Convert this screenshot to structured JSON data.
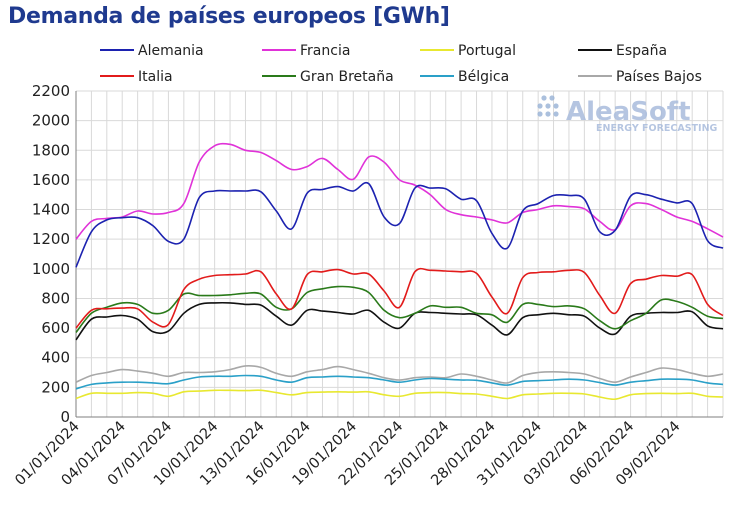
{
  "chart_data": {
    "type": "line",
    "title": "Demanda de países europeos [GWh]",
    "xlabel": "",
    "ylabel": "",
    "ylim": [
      0,
      2200
    ],
    "yticks": [
      0,
      200,
      400,
      600,
      800,
      1000,
      1200,
      1400,
      1600,
      1800,
      2000,
      2200
    ],
    "x_range": [
      "01/01/2024",
      "11/02/2024"
    ],
    "xtick_labels": [
      "01/01/2024",
      "04/01/2024",
      "07/01/2024",
      "10/01/2024",
      "13/01/2024",
      "16/01/2024",
      "19/01/2024",
      "22/01/2024",
      "25/01/2024",
      "28/01/2024",
      "31/01/2024",
      "03/02/2024",
      "06/02/2024",
      "09/02/2024"
    ],
    "grid": true,
    "legend_position": "top",
    "watermark": {
      "name": "AleaSoft",
      "tagline": "ENERGY FORECASTING"
    },
    "series": [
      {
        "name": "Alemania",
        "color": "#1c22b0",
        "values": [
          1010,
          1250,
          1330,
          1345,
          1345,
          1290,
          1185,
          1200,
          1480,
          1525,
          1525,
          1525,
          1520,
          1390,
          1270,
          1510,
          1535,
          1555,
          1525,
          1575,
          1350,
          1305,
          1545,
          1545,
          1540,
          1470,
          1460,
          1240,
          1140,
          1390,
          1440,
          1495,
          1495,
          1470,
          1250,
          1260,
          1490,
          1500,
          1470,
          1445,
          1440,
          1190,
          1140
        ]
      },
      {
        "name": "Francia",
        "color": "#e032d8",
        "values": [
          1200,
          1320,
          1340,
          1350,
          1390,
          1370,
          1380,
          1440,
          1720,
          1830,
          1840,
          1800,
          1785,
          1730,
          1670,
          1690,
          1745,
          1670,
          1605,
          1755,
          1720,
          1600,
          1565,
          1500,
          1400,
          1365,
          1350,
          1330,
          1310,
          1380,
          1400,
          1425,
          1420,
          1405,
          1320,
          1265,
          1425,
          1440,
          1400,
          1350,
          1320,
          1270,
          1215
        ]
      },
      {
        "name": "Portugal",
        "color": "#e8e830",
        "values": [
          125,
          160,
          160,
          160,
          165,
          160,
          140,
          170,
          175,
          180,
          180,
          178,
          180,
          165,
          150,
          165,
          168,
          170,
          168,
          170,
          150,
          140,
          160,
          165,
          165,
          158,
          155,
          140,
          125,
          150,
          155,
          160,
          160,
          155,
          135,
          120,
          150,
          158,
          160,
          158,
          160,
          140,
          135
        ]
      },
      {
        "name": "España",
        "color": "#111111",
        "values": [
          520,
          660,
          675,
          685,
          660,
          575,
          580,
          700,
          760,
          770,
          770,
          760,
          755,
          680,
          620,
          720,
          715,
          705,
          695,
          720,
          640,
          600,
          700,
          705,
          700,
          695,
          690,
          620,
          555,
          670,
          690,
          700,
          690,
          680,
          600,
          560,
          680,
          700,
          705,
          705,
          710,
          615,
          595
        ]
      },
      {
        "name": "Italia",
        "color": "#e21b1b",
        "values": [
          600,
          720,
          730,
          735,
          730,
          640,
          625,
          860,
          930,
          955,
          960,
          965,
          980,
          830,
          730,
          960,
          980,
          995,
          965,
          965,
          850,
          740,
          980,
          990,
          985,
          980,
          970,
          810,
          700,
          940,
          975,
          980,
          990,
          975,
          820,
          700,
          900,
          930,
          955,
          950,
          960,
          760,
          685
        ]
      },
      {
        "name": "Gran Bretaña",
        "color": "#2a7a1a",
        "values": [
          570,
          700,
          740,
          770,
          760,
          700,
          720,
          830,
          820,
          820,
          825,
          835,
          830,
          740,
          730,
          840,
          865,
          880,
          875,
          840,
          720,
          670,
          700,
          750,
          740,
          740,
          700,
          690,
          640,
          760,
          760,
          745,
          750,
          730,
          650,
          595,
          650,
          700,
          790,
          780,
          740,
          680,
          665
        ]
      },
      {
        "name": "Bélgica",
        "color": "#2aa0c8",
        "values": [
          190,
          220,
          230,
          235,
          235,
          230,
          225,
          250,
          270,
          275,
          275,
          280,
          275,
          250,
          235,
          265,
          270,
          275,
          270,
          265,
          250,
          235,
          250,
          260,
          255,
          250,
          248,
          230,
          215,
          240,
          245,
          250,
          255,
          250,
          232,
          215,
          235,
          245,
          255,
          255,
          250,
          230,
          220
        ]
      },
      {
        "name": "Países Bajos",
        "color": "#a8a8a8",
        "values": [
          235,
          280,
          300,
          320,
          310,
          295,
          275,
          300,
          300,
          305,
          320,
          345,
          335,
          295,
          275,
          305,
          320,
          340,
          320,
          295,
          265,
          250,
          265,
          270,
          265,
          290,
          275,
          250,
          230,
          280,
          300,
          305,
          300,
          290,
          260,
          235,
          270,
          300,
          330,
          320,
          295,
          275,
          290
        ]
      }
    ]
  }
}
